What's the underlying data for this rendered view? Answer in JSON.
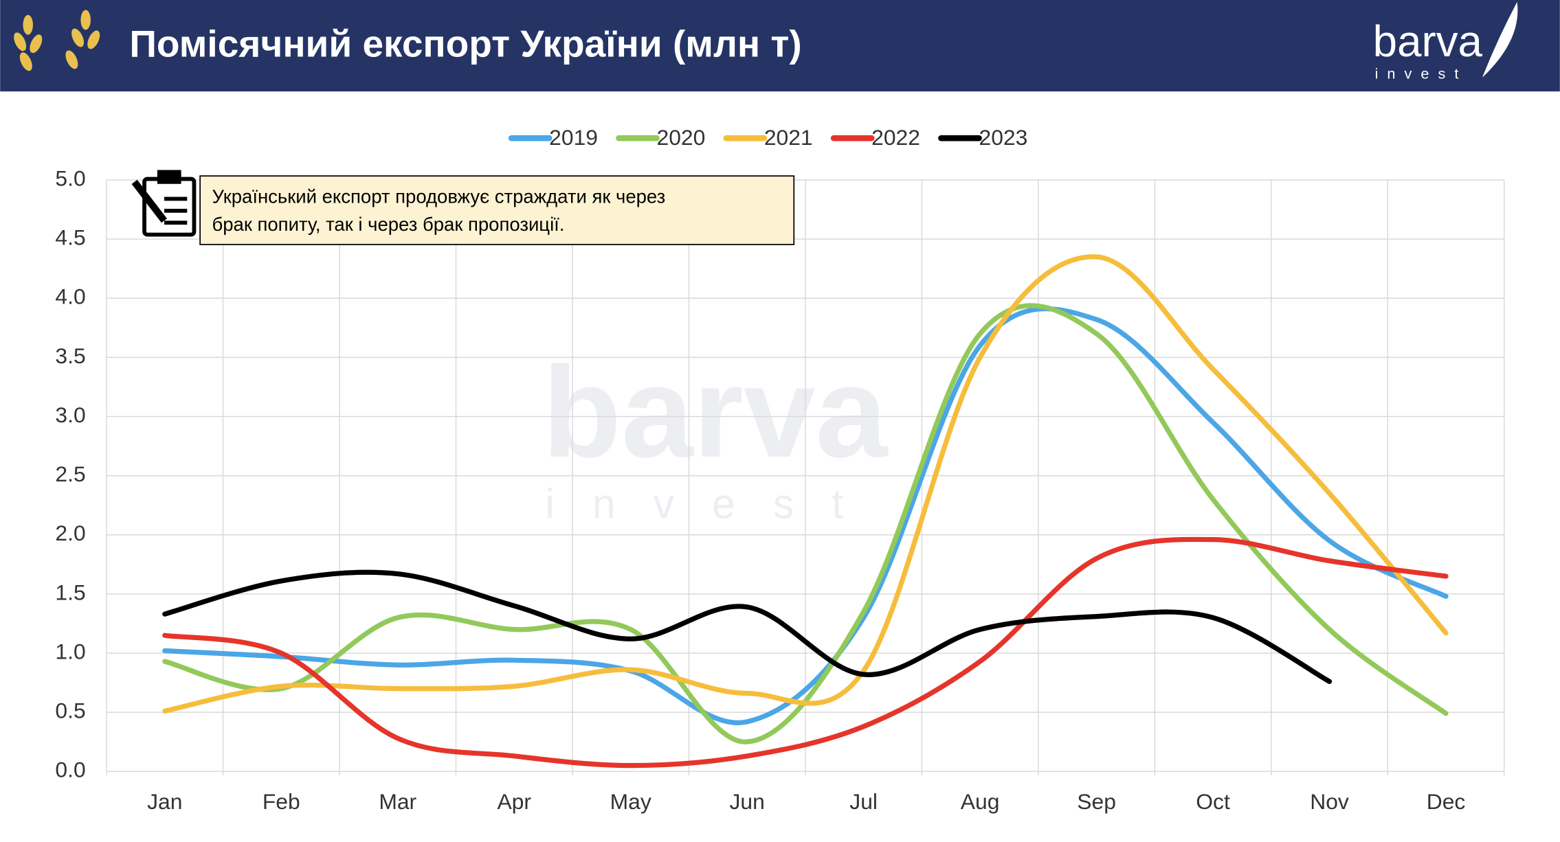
{
  "chart_data": {
    "type": "line",
    "title": "Помісячний експорт України (млн т)",
    "logo": {
      "name": "barva",
      "sub": "invest"
    },
    "annotation": [
      "Український експорт продовжує страждати як через",
      "брак попиту, так і через брак пропозиції."
    ],
    "categories": [
      "Jan",
      "Feb",
      "Mar",
      "Apr",
      "May",
      "Jun",
      "Jul",
      "Aug",
      "Sep",
      "Oct",
      "Nov",
      "Dec"
    ],
    "series": [
      {
        "name": "2019",
        "color": "#4ba6e6",
        "values": [
          1.02,
          0.97,
          0.9,
          0.94,
          0.85,
          0.42,
          1.3,
          3.6,
          3.82,
          2.95,
          1.95,
          1.48
        ]
      },
      {
        "name": "2020",
        "color": "#92c95a",
        "values": [
          0.93,
          0.7,
          1.3,
          1.2,
          1.2,
          0.25,
          1.35,
          3.7,
          3.7,
          2.3,
          1.2,
          0.49
        ]
      },
      {
        "name": "2021",
        "color": "#f6bd3c",
        "values": [
          0.51,
          0.72,
          0.7,
          0.72,
          0.86,
          0.66,
          0.85,
          3.5,
          4.35,
          3.4,
          2.35,
          1.17
        ]
      },
      {
        "name": "2022",
        "color": "#e5352b",
        "values": [
          1.15,
          1.0,
          0.28,
          0.13,
          0.05,
          0.13,
          0.38,
          0.93,
          1.8,
          1.96,
          1.78,
          1.65
        ]
      },
      {
        "name": "2023",
        "color": "#000000",
        "values": [
          1.33,
          1.61,
          1.67,
          1.4,
          1.12,
          1.39,
          0.82,
          1.2,
          1.31,
          1.3,
          0.76,
          null
        ]
      }
    ],
    "ylim": [
      0,
      5
    ],
    "yticks": [
      {
        "value": 0,
        "label": "0.0"
      },
      0.5,
      {
        "value": 1,
        "label": "1.0"
      },
      1.5,
      {
        "value": 2,
        "label": "2.0"
      },
      2.5,
      {
        "value": 3,
        "label": "3.0"
      },
      3.5,
      {
        "value": 4,
        "label": "4.0"
      },
      4.5,
      {
        "value": 5,
        "label": "5.0"
      }
    ],
    "grid": true,
    "legend": "top"
  }
}
